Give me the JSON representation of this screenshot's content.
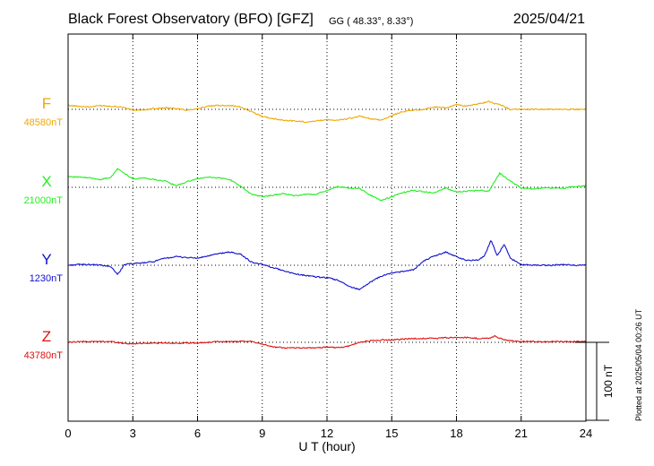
{
  "header": {
    "title": "Black Forest Observatory (BFO)  [GFZ]",
    "coords": "GG ( 48.33°,   8.33°)",
    "date": "2025/04/21"
  },
  "footer": {
    "plotted": "Plotted at 2025/05/04 00:26 UT"
  },
  "chart_data": {
    "type": "line",
    "title": "Black Forest Observatory (BFO)  [GFZ]",
    "xlabel": "U T (hour)",
    "xlim": [
      0,
      24
    ],
    "x_ticks": [
      0,
      3,
      6,
      9,
      12,
      15,
      18,
      21,
      24
    ],
    "x_tick_labels": [
      "0",
      "3",
      "6",
      "9",
      "12",
      "15",
      "18",
      "21",
      "24"
    ],
    "grid": true,
    "scale_bar_label": "100 nT",
    "scale_bar_nT": 100,
    "ylim_nT": [
      -275,
      190
    ],
    "series": [
      {
        "name": "F",
        "base_label": "48580nT",
        "color": "#f0a800",
        "offset_nT": 0,
        "x": [
          0,
          0.5,
          1,
          1.5,
          2,
          2.5,
          3,
          3.5,
          4,
          4.5,
          5,
          5.5,
          6,
          6.5,
          7,
          7.5,
          8,
          8.5,
          9,
          9.5,
          10,
          10.5,
          11,
          11.5,
          12,
          12.5,
          13,
          13.5,
          14,
          14.5,
          15,
          15.5,
          16,
          16.5,
          17,
          17.5,
          18,
          18.5,
          19,
          19.5,
          20,
          20.5,
          21,
          21.5,
          22,
          22.5,
          23,
          23.5,
          24
        ],
        "y": [
          5,
          4,
          3,
          5,
          4,
          3,
          -1,
          -1,
          1,
          2,
          1,
          -1,
          1,
          4,
          5,
          5,
          3,
          -3,
          -9,
          -12,
          -14,
          -15,
          -16,
          -15,
          -13,
          -14,
          -12,
          -9,
          -12,
          -14,
          -8,
          -3,
          -1,
          0,
          3,
          2,
          6,
          4,
          7,
          10,
          6,
          0,
          0,
          0,
          0,
          0,
          0,
          0,
          0
        ]
      },
      {
        "name": "X",
        "base_label": "21000nT",
        "color": "#22ee22",
        "offset_nT": 0,
        "x": [
          0,
          0.5,
          1,
          1.5,
          2,
          2.3,
          2.6,
          3,
          3.5,
          4,
          4.5,
          5,
          5.5,
          6,
          6.5,
          7,
          7.5,
          8,
          8.5,
          9,
          9.5,
          10,
          10.5,
          11,
          11.5,
          12,
          12.5,
          13,
          13.5,
          14,
          14.5,
          15,
          15.5,
          16,
          16.5,
          17,
          17.5,
          18,
          18.5,
          19,
          19.5,
          20,
          20.5,
          21,
          21.5,
          22,
          22.5,
          23,
          23.5,
          24
        ],
        "y": [
          14,
          13,
          12,
          10,
          13,
          24,
          18,
          11,
          12,
          10,
          8,
          2,
          7,
          11,
          13,
          12,
          10,
          1,
          -9,
          -12,
          -10,
          -8,
          -11,
          -9,
          -9,
          -4,
          1,
          -1,
          -1,
          -10,
          -17,
          -12,
          -7,
          -4,
          -6,
          -7,
          -1,
          -6,
          -5,
          -4,
          -5,
          18,
          8,
          -1,
          -2,
          -1,
          -1,
          -1,
          1,
          2
        ]
      },
      {
        "name": "Y",
        "base_label": "1230nT",
        "color": "#1010cc",
        "offset_nT": 0,
        "x": [
          0,
          0.5,
          1,
          1.5,
          2,
          2.3,
          2.6,
          3,
          3.5,
          4,
          4.5,
          5,
          5.5,
          6,
          6.5,
          7,
          7.5,
          8,
          8.5,
          9,
          9.5,
          10,
          10.5,
          11,
          11.5,
          12,
          12.5,
          13,
          13.5,
          14,
          14.5,
          15,
          15.5,
          16,
          16.5,
          17,
          17.5,
          18,
          18.5,
          19,
          19.3,
          19.6,
          19.9,
          20.2,
          20.5,
          21,
          21.5,
          22,
          22.5,
          23,
          23.5,
          24
        ],
        "y": [
          0,
          1,
          1,
          0,
          -2,
          -12,
          1,
          2,
          3,
          5,
          9,
          11,
          10,
          9,
          12,
          15,
          17,
          14,
          4,
          1,
          -3,
          -7,
          -11,
          -13,
          -15,
          -16,
          -19,
          -27,
          -31,
          -22,
          -14,
          -10,
          -8,
          -6,
          6,
          12,
          17,
          11,
          6,
          7,
          12,
          32,
          12,
          27,
          9,
          1,
          0,
          0,
          0,
          1,
          0,
          0
        ]
      },
      {
        "name": "Z",
        "base_label": "43780nT",
        "color": "#dd1010",
        "offset_nT": 0,
        "x": [
          0,
          0.5,
          1,
          1.5,
          2,
          2.5,
          3,
          3.5,
          4,
          4.5,
          5,
          5.5,
          6,
          6.5,
          7,
          7.5,
          8,
          8.5,
          9,
          9.5,
          10,
          10.5,
          11,
          11.5,
          12,
          12.5,
          13,
          13.5,
          14,
          14.5,
          15,
          15.5,
          16,
          16.5,
          17,
          17.5,
          18,
          18.5,
          19,
          19.5,
          19.8,
          20.1,
          20.5,
          21,
          21.5,
          22,
          22.5,
          23,
          23.5,
          24
        ],
        "y": [
          0,
          1,
          1,
          1,
          1,
          -1,
          -2,
          -1,
          -1,
          -1,
          -1,
          -1,
          -1,
          0,
          1,
          1,
          1,
          1,
          -2,
          -6,
          -7,
          -7,
          -7,
          -7,
          -6,
          -7,
          -5,
          0,
          2,
          3,
          3,
          4,
          5,
          5,
          5,
          6,
          6,
          6,
          5,
          5,
          8,
          4,
          2,
          1,
          1,
          1,
          1,
          1,
          1,
          1
        ]
      }
    ]
  }
}
